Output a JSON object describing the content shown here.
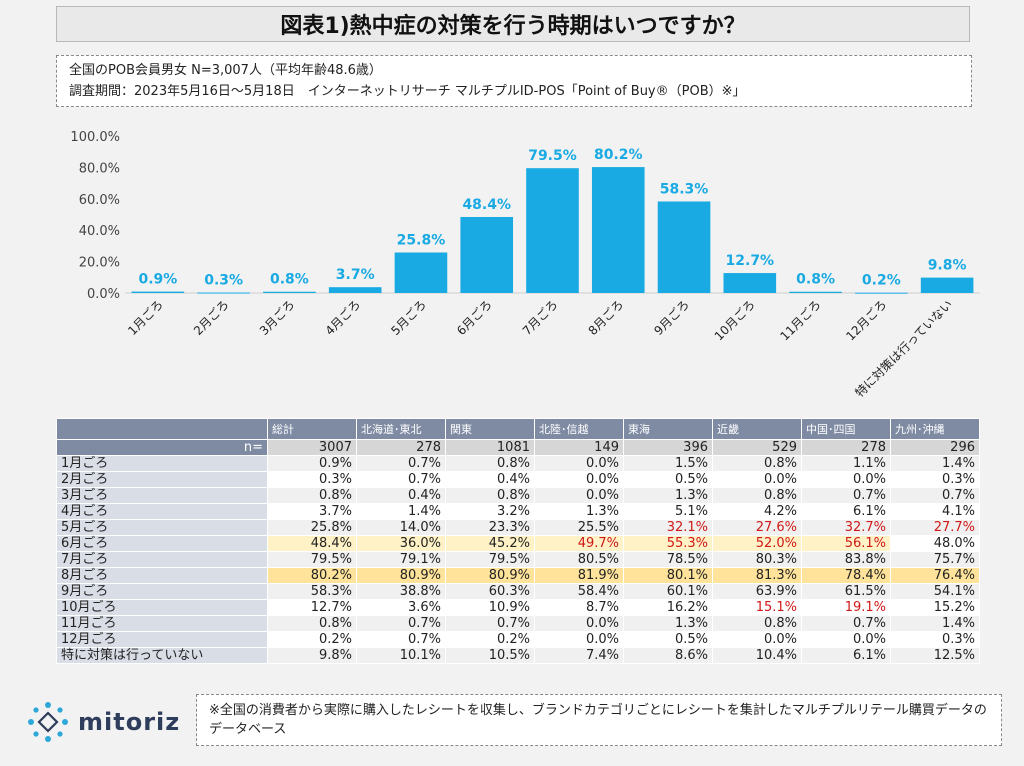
{
  "header": {
    "title": "図表1)熱中症の対策を行う時期はいつですか？"
  },
  "info": {
    "line1": "全国のPOB会員男女 N=3,007人（平均年齢48.6歳）",
    "line2": "調査期間：2023年5月16日～5月18日　インターネットリサーチ マルチプルID-POS「Point of Buy®（POB）※」"
  },
  "chart_data": {
    "type": "bar",
    "categories": [
      "1月ごろ",
      "2月ごろ",
      "3月ごろ",
      "4月ごろ",
      "5月ごろ",
      "6月ごろ",
      "7月ごろ",
      "8月ごろ",
      "9月ごろ",
      "10月ごろ",
      "11月ごろ",
      "12月ごろ",
      "特に対策は行っていない"
    ],
    "values": [
      0.9,
      0.3,
      0.8,
      3.7,
      25.8,
      48.4,
      79.5,
      80.2,
      58.3,
      12.7,
      0.8,
      0.2,
      9.8
    ],
    "data_labels": [
      "0.9%",
      "0.3%",
      "0.8%",
      "3.7%",
      "25.8%",
      "48.4%",
      "79.5%",
      "80.2%",
      "58.3%",
      "12.7%",
      "0.8%",
      "0.2%",
      "9.8%"
    ],
    "y_ticks": [
      "0.0%",
      "20.0%",
      "40.0%",
      "60.0%",
      "80.0%",
      "100.0%"
    ],
    "ylim": [
      0,
      100
    ],
    "bar_color": "#1aaae3",
    "label_color": "#1aaae3",
    "grid": false
  },
  "table": {
    "headers": [
      "総計",
      "北海道･東北",
      "関東",
      "北陸･信越",
      "東海",
      "近畿",
      "中国･四国",
      "九州･沖縄"
    ],
    "n_label": "n=",
    "n_values": [
      "3007",
      "278",
      "1081",
      "149",
      "396",
      "529",
      "278",
      "296"
    ],
    "rows": [
      {
        "label": "1月ごろ",
        "values": [
          "0.9%",
          "0.7%",
          "0.8%",
          "0.0%",
          "1.5%",
          "0.8%",
          "1.1%",
          "1.4%"
        ]
      },
      {
        "label": "2月ごろ",
        "values": [
          "0.3%",
          "0.7%",
          "0.4%",
          "0.0%",
          "0.5%",
          "0.0%",
          "0.0%",
          "0.3%"
        ]
      },
      {
        "label": "3月ごろ",
        "values": [
          "0.8%",
          "0.4%",
          "0.8%",
          "0.0%",
          "1.3%",
          "0.8%",
          "0.7%",
          "0.7%"
        ]
      },
      {
        "label": "4月ごろ",
        "values": [
          "3.7%",
          "1.4%",
          "3.2%",
          "1.3%",
          "5.1%",
          "4.2%",
          "6.1%",
          "4.1%"
        ]
      },
      {
        "label": "5月ごろ",
        "values": [
          "25.8%",
          "14.0%",
          "23.3%",
          "25.5%",
          "32.1%",
          "27.6%",
          "32.7%",
          "27.7%"
        ]
      },
      {
        "label": "6月ごろ",
        "values": [
          "48.4%",
          "36.0%",
          "45.2%",
          "49.7%",
          "55.3%",
          "52.0%",
          "56.1%",
          "48.0%"
        ]
      },
      {
        "label": "7月ごろ",
        "values": [
          "79.5%",
          "79.1%",
          "79.5%",
          "80.5%",
          "78.5%",
          "80.3%",
          "83.8%",
          "75.7%"
        ]
      },
      {
        "label": "8月ごろ",
        "values": [
          "80.2%",
          "80.9%",
          "80.9%",
          "81.9%",
          "80.1%",
          "81.3%",
          "78.4%",
          "76.4%"
        ]
      },
      {
        "label": "9月ごろ",
        "values": [
          "58.3%",
          "38.8%",
          "60.3%",
          "58.4%",
          "60.1%",
          "63.9%",
          "61.5%",
          "54.1%"
        ]
      },
      {
        "label": "10月ごろ",
        "values": [
          "12.7%",
          "3.6%",
          "10.9%",
          "8.7%",
          "16.2%",
          "15.1%",
          "19.1%",
          "15.2%"
        ]
      },
      {
        "label": "11月ごろ",
        "values": [
          "0.8%",
          "0.7%",
          "0.7%",
          "0.0%",
          "1.3%",
          "0.8%",
          "0.7%",
          "1.4%"
        ]
      },
      {
        "label": "12月ごろ",
        "values": [
          "0.2%",
          "0.7%",
          "0.2%",
          "0.0%",
          "0.5%",
          "0.0%",
          "0.0%",
          "0.3%"
        ]
      },
      {
        "label": "特に対策は行っていない",
        "values": [
          "9.8%",
          "10.1%",
          "10.5%",
          "7.4%",
          "8.6%",
          "10.4%",
          "6.1%",
          "12.5%"
        ]
      }
    ],
    "red_cells": [
      "4-4",
      "4-5",
      "4-6",
      "4-7",
      "5-3",
      "5-4",
      "5-5",
      "5-6",
      "9-5",
      "9-6"
    ],
    "highlight_strong": [
      "6-0",
      "6-1",
      "6-2",
      "6-3",
      "6-4",
      "6-5",
      "6-6",
      "6-7",
      "7-0",
      "7-1",
      "7-2",
      "7-3",
      "7-4",
      "7-5",
      "7-6",
      "7-7"
    ],
    "highlight_light": [
      "5-0",
      "5-1",
      "5-2",
      "5-3",
      "5-4",
      "5-5",
      "5-6",
      "8-0",
      "8-1",
      "8-2",
      "8-3",
      "8-4",
      "8-5",
      "8-6",
      "8-7"
    ],
    "colors": {
      "highlight_strong": "#ffe39a",
      "highlight_light": "#fff2c6",
      "red": "#d01818",
      "header": "#7f8ba3"
    }
  },
  "logo": {
    "text": "mitoriz",
    "color": "#2e3d5c",
    "icon": "mitoriz-logo-icon"
  },
  "note": {
    "text": "※全国の消費者から実際に購入したレシートを収集し、ブランドカテゴリごとにレシートを集計したマルチプルリテール購買データのデータベース"
  }
}
